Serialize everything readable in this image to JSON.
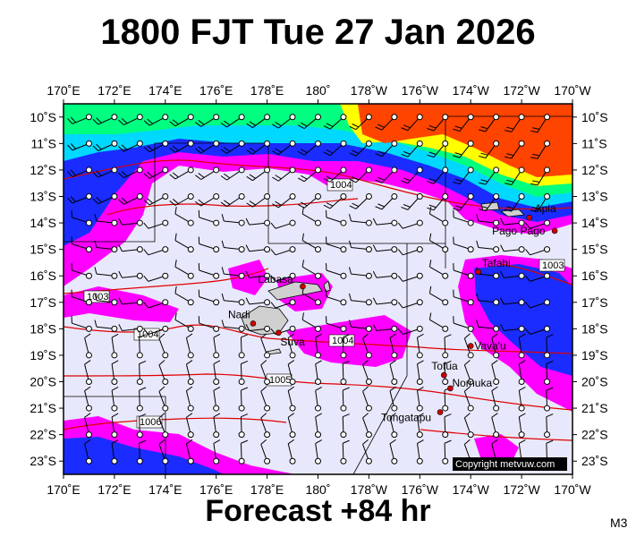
{
  "header": {
    "title": "1800 FJT Tue 27 Jan 2026"
  },
  "footer": {
    "forecast": "Forecast +84 hr",
    "model": "M3"
  },
  "map": {
    "copyright": "Copyright metvuw.com",
    "lon_labels": [
      "170˚E",
      "172˚E",
      "174˚E",
      "176˚E",
      "178˚E",
      "180˚",
      "178˚W",
      "176˚W",
      "174˚W",
      "172˚W",
      "170˚W"
    ],
    "lat_labels": [
      "10˚S",
      "11˚S",
      "12˚S",
      "13˚S",
      "14˚S",
      "15˚S",
      "16˚S",
      "17˚S",
      "18˚S",
      "19˚S",
      "20˚S",
      "21˚S",
      "22˚S",
      "23˚S"
    ],
    "places": [
      {
        "name": "Apia",
        "lon": -171.7,
        "lat": -13.8
      },
      {
        "name": "Pago Pago",
        "lon": -170.7,
        "lat": -14.3
      },
      {
        "name": "Tafahi",
        "lon": -173.7,
        "lat": -15.85
      },
      {
        "name": "Labasa",
        "lon": 179.4,
        "lat": -16.4
      },
      {
        "name": "Nadi",
        "lon": 177.45,
        "lat": -17.8
      },
      {
        "name": "Suva",
        "lon": 178.45,
        "lat": -18.15
      },
      {
        "name": "Vava'u",
        "lon": -174.0,
        "lat": -18.65
      },
      {
        "name": "Tofua",
        "lon": -175.05,
        "lat": -19.75
      },
      {
        "name": "Nomuka",
        "lon": -174.8,
        "lat": -20.25
      },
      {
        "name": "Tongatapu",
        "lon": -175.2,
        "lat": -21.15
      }
    ],
    "isobar_labels": [
      "1003",
      "1004",
      "1005",
      "1006"
    ],
    "colors": {
      "dry": "#e8e8fc",
      "light_rain": "#ff00ff",
      "moderate_rain": "#0000ff",
      "heavy_rain": "#00c8ff",
      "very_heavy_rain": "#00ff80",
      "intense_rain": "#ff4400",
      "isobar": "#e00000",
      "land": "#d0d0d0"
    }
  }
}
